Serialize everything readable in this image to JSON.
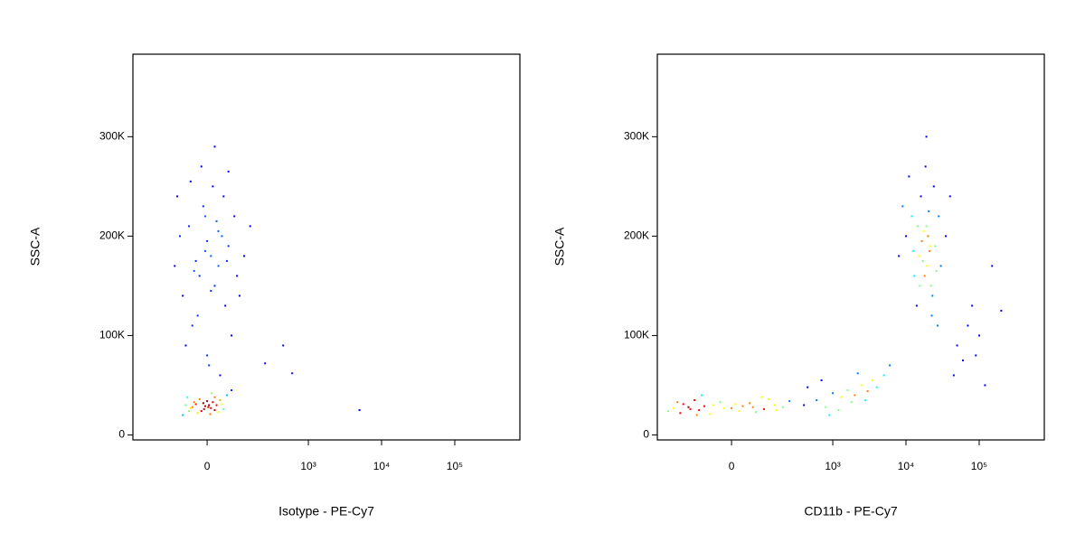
{
  "chart_data": [
    {
      "type": "scatter",
      "x_label": "Isotype - PE-Cy7",
      "y_label": "SSC-A",
      "xscale": "biexponential",
      "colormap": "jet",
      "xlim": [
        -424,
        775000
      ],
      "ylim": [
        -5000,
        383000
      ],
      "xticks": [
        0,
        {
          "value": 1000,
          "label": "10³"
        },
        {
          "value": 10000,
          "label": "10⁴"
        },
        {
          "value": 100000,
          "label": "10⁵"
        }
      ],
      "yticks": [
        0,
        {
          "value": 100000,
          "label": "100K"
        },
        {
          "value": 200000,
          "label": "200K"
        },
        {
          "value": 300000,
          "label": "300K"
        }
      ],
      "x": [
        -40,
        -10,
        20,
        5,
        -25,
        35,
        -55,
        10,
        -5,
        15,
        -30,
        45,
        -15,
        0,
        25,
        -45,
        55,
        -20,
        8,
        30,
        -60,
        12,
        -8,
        40,
        -35,
        3,
        20,
        -50,
        70,
        -70,
        -20,
        10,
        40,
        -50,
        20,
        60,
        -10,
        30,
        -70,
        80,
        0,
        -30,
        50,
        15,
        -40,
        90,
        -80,
        25,
        -5,
        45,
        -60,
        5,
        35,
        -25,
        70,
        120,
        -100,
        150,
        -15,
        20,
        60,
        -45,
        100,
        -90,
        0,
        30,
        -35,
        55,
        10,
        -5,
        450,
        600,
        5000,
        250
      ],
      "y": [
        28000,
        32000,
        25000,
        30000,
        22000,
        35000,
        38000,
        27000,
        29000,
        33000,
        31000,
        26000,
        24000,
        34000,
        30000,
        27000,
        40000,
        36000,
        21000,
        23000,
        30000,
        42000,
        26000,
        31000,
        33000,
        28000,
        38000,
        24000,
        45000,
        20000,
        160000,
        180000,
        200000,
        210000,
        150000,
        190000,
        230000,
        170000,
        140000,
        220000,
        195000,
        175000,
        130000,
        250000,
        110000,
        160000,
        200000,
        215000,
        185000,
        240000,
        90000,
        70000,
        60000,
        120000,
        100000,
        180000,
        170000,
        210000,
        270000,
        290000,
        265000,
        255000,
        140000,
        240000,
        80000,
        205000,
        165000,
        175000,
        145000,
        220000,
        90000,
        62000,
        25000,
        72000
      ]
    },
    {
      "type": "scatter",
      "x_label": "CD11b - PE-Cy7",
      "y_label": "SSC-A",
      "xscale": "biexponential",
      "colormap": "jet",
      "xlim": [
        -424,
        775000
      ],
      "ylim": [
        -5000,
        383000
      ],
      "xticks": [
        0,
        {
          "value": 1000,
          "label": "10³"
        },
        {
          "value": 10000,
          "label": "10⁴"
        },
        {
          "value": 100000,
          "label": "10⁵"
        }
      ],
      "yticks": [
        0,
        {
          "value": 100000,
          "label": "100K"
        },
        {
          "value": 200000,
          "label": "200K"
        },
        {
          "value": 300000,
          "label": "300K"
        }
      ],
      "x": [
        -150,
        -100,
        -50,
        0,
        50,
        -200,
        100,
        -120,
        20,
        -80,
        150,
        -250,
        70,
        -30,
        200,
        -180,
        120,
        -60,
        30,
        -140,
        250,
        -300,
        90,
        -20,
        160,
        -220,
        10,
        -90,
        60,
        -110,
        400,
        600,
        800,
        1000,
        1300,
        1600,
        2000,
        2500,
        3000,
        3500,
        4000,
        5000,
        700,
        1200,
        1800,
        2200,
        450,
        900,
        2800,
        6000,
        15000,
        20000,
        18000,
        12000,
        25000,
        22000,
        16000,
        30000,
        10000,
        19000,
        14000,
        24000,
        17000,
        21000,
        13000,
        28000,
        11000,
        23000,
        9000,
        35000,
        16500,
        19500,
        20500,
        15500,
        26000,
        12500,
        18500,
        22500,
        8000,
        40000,
        17500,
        21500,
        14500,
        27000,
        19000,
        50000,
        70000,
        60000,
        90000,
        45000,
        120000,
        80000,
        150000,
        200000,
        100000
      ],
      "y": [
        28000,
        25000,
        30000,
        27000,
        32000,
        22000,
        26000,
        35000,
        24000,
        29000,
        30000,
        27000,
        23000,
        33000,
        28000,
        31000,
        36000,
        21000,
        29000,
        26000,
        34000,
        24000,
        38000,
        27000,
        25000,
        33000,
        31000,
        40000,
        28000,
        20000,
        30000,
        35000,
        28000,
        42000,
        38000,
        45000,
        40000,
        50000,
        44000,
        55000,
        48000,
        60000,
        55000,
        25000,
        33000,
        62000,
        48000,
        20000,
        35000,
        70000,
        180000,
        200000,
        160000,
        220000,
        190000,
        150000,
        240000,
        170000,
        200000,
        210000,
        130000,
        250000,
        175000,
        185000,
        160000,
        220000,
        260000,
        140000,
        230000,
        200000,
        195000,
        170000,
        225000,
        150000,
        165000,
        185000,
        270000,
        120000,
        180000,
        240000,
        205000,
        190000,
        210000,
        110000,
        300000,
        90000,
        110000,
        75000,
        80000,
        60000,
        50000,
        130000,
        170000,
        125000,
        100000
      ]
    }
  ]
}
